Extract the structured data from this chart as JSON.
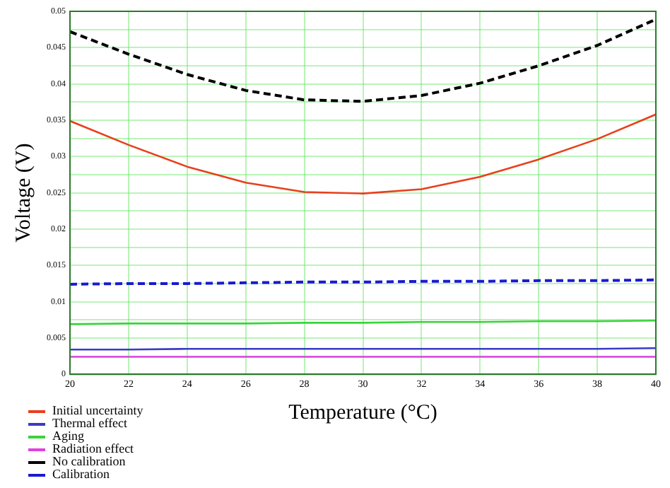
{
  "chart_data": {
    "type": "line",
    "xlabel": "Temperature (°C)",
    "ylabel": "Voltage (V)",
    "x": [
      20,
      22,
      24,
      26,
      28,
      30,
      32,
      34,
      36,
      38,
      40
    ],
    "xlim": [
      20,
      40
    ],
    "xticks": [
      20,
      22,
      24,
      26,
      28,
      30,
      32,
      34,
      36,
      38,
      40
    ],
    "ylim": [
      0,
      0.05
    ],
    "yticks": [
      0,
      {
        "value": 0.0025,
        "label": null
      },
      0.005,
      {
        "value": 0.0075,
        "label": null
      },
      0.01,
      {
        "value": 0.0125,
        "label": null
      },
      0.015,
      {
        "value": 0.0175,
        "label": null
      },
      0.02,
      {
        "value": 0.0225,
        "label": null
      },
      0.025,
      {
        "value": 0.0275,
        "label": null
      },
      0.03,
      {
        "value": 0.0325,
        "label": null
      },
      0.035,
      {
        "value": 0.0375,
        "label": null
      },
      0.04,
      {
        "value": 0.0425,
        "label": null
      },
      0.045,
      {
        "value": 0.0475,
        "label": null
      },
      0.05
    ],
    "grid": true,
    "legend": "bottom left",
    "marker": "none",
    "series": [
      {
        "name": "Initial uncertainty",
        "color": "#e8401c",
        "line_style": "solid",
        "values": [
          0.0349,
          0.0316,
          0.0286,
          0.0264,
          0.0251,
          0.0249,
          0.0255,
          0.0272,
          0.0296,
          0.0324,
          0.0358
        ]
      },
      {
        "name": "Thermal effect",
        "color": "#3a3ac8",
        "line_style": "solid",
        "values": [
          0.0034,
          0.0034,
          0.0035,
          0.0035,
          0.0035,
          0.0035,
          0.0035,
          0.0035,
          0.0035,
          0.0035,
          0.0036
        ]
      },
      {
        "name": "Aging",
        "color": "#3cd23c",
        "line_style": "solid",
        "values": [
          0.0069,
          0.007,
          0.007,
          0.007,
          0.0071,
          0.0071,
          0.0072,
          0.0072,
          0.0073,
          0.0073,
          0.0074
        ]
      },
      {
        "name": "Radiation effect",
        "color": "#e040e0",
        "line_style": "solid",
        "values": [
          0.0024,
          0.0024,
          0.0024,
          0.0024,
          0.0024,
          0.0024,
          0.0024,
          0.0024,
          0.0024,
          0.0024,
          0.0024
        ]
      },
      {
        "name": "No calibration",
        "color": "#000000",
        "line_style": "dashed",
        "values": [
          0.0472,
          0.0441,
          0.0413,
          0.0391,
          0.0378,
          0.0376,
          0.0384,
          0.0401,
          0.0425,
          0.0453,
          0.0489
        ]
      },
      {
        "name": "Calibration",
        "color": "#1a1ad0",
        "line_style": "dashed",
        "values": [
          0.0124,
          0.0125,
          0.0125,
          0.0126,
          0.0127,
          0.0127,
          0.0128,
          0.0128,
          0.0129,
          0.0129,
          0.013
        ]
      }
    ]
  }
}
